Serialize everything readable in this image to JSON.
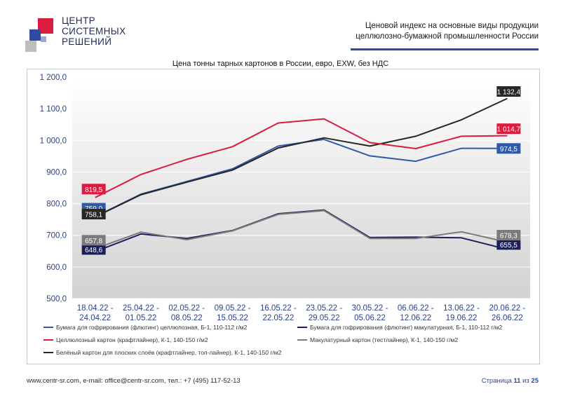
{
  "logo": {
    "line1": "ЦЕНТР",
    "line2": "СИСТЕМНЫХ",
    "line3": "РЕШЕНИЙ"
  },
  "header": {
    "line1": "Ценовой индекс на основные виды продукции",
    "line2": "целлюлозно-бумажной промышленности России",
    "accent_color": "#2e4a9a"
  },
  "chart_data": {
    "type": "line",
    "title": "Цена тонны тарных картонов в России, евро, EXW, без НДС",
    "ylim": [
      500,
      1200
    ],
    "yticks": [
      "500,0",
      "600,0",
      "700,0",
      "800,0",
      "900,0",
      "1 000,0",
      "1 100,0",
      "1 200,0"
    ],
    "ytick_values": [
      500,
      600,
      700,
      800,
      900,
      1000,
      1100,
      1200
    ],
    "categories": [
      [
        "18.04.22 -",
        "24.04.22"
      ],
      [
        "25.04.22 -",
        "01.05.22"
      ],
      [
        "02.05.22 -",
        "08.05.22"
      ],
      [
        "09.05.22 -",
        "15.05.22"
      ],
      [
        "16.05.22 -",
        "22.05.22"
      ],
      [
        "23.05.22 -",
        "29.05.22"
      ],
      [
        "30.05.22 -",
        "05.06.22"
      ],
      [
        "06.06.22 -",
        "12.06.22"
      ],
      [
        "13.06.22 -",
        "19.06.22"
      ],
      [
        "20.06.22 -",
        "26.06.22"
      ]
    ],
    "grid": "horizontal",
    "legend_position": "bottom",
    "series": [
      {
        "name": "Бумага для гофрирования (флютинг) целлюлозная, Б-1, 110-112 г/м2",
        "color": "#2f5aa8",
        "values": [
          759.0,
          830,
          870,
          910,
          982,
          1003,
          951,
          934,
          975,
          974.5
        ],
        "first_label": "759,0",
        "last_label": "974,5"
      },
      {
        "name": "Бумага для гофрирования (флютинг) макулатурная, Б-1, 110-112 г/м2",
        "color": "#1b1f5c",
        "values": [
          648.6,
          704,
          690,
          715,
          768,
          780,
          693,
          694,
          692,
          655.5
        ],
        "first_label": "648,6",
        "last_label": "655,5"
      },
      {
        "name": "Целлюлозный картон (крафтлайнер), К-1, 140-150 г/м2",
        "color": "#d91c3f",
        "values": [
          819.5,
          892,
          940,
          980,
          1055,
          1068,
          993,
          974,
          1013,
          1014.7
        ],
        "first_label": "819,5",
        "last_label": "1 014,7"
      },
      {
        "name": "Макулатурный картон (тестлайнер), К-1, 140-150 г/м2",
        "color": "#7b7b7b",
        "values": [
          657.8,
          710,
          686,
          714,
          766,
          778,
          690,
          690,
          711,
          678.3
        ],
        "first_label": "657,8",
        "last_label": "678,3"
      },
      {
        "name": "Белёный картон для плоских слоёв (крафтлайнер, топ-лайнер), К-1, 140-150 г/м2",
        "color": "#262626",
        "values": [
          758.1,
          828,
          868,
          906,
          976,
          1008,
          982,
          1013,
          1065,
          1132.4
        ],
        "first_label": "758,1",
        "last_label": "1 132,4"
      }
    ]
  },
  "footer": {
    "contacts": "www.centr-sr.com, e-mail: office@centr-sr.com, тел.: +7 (495) 117-52-13",
    "page_prefix": "Страница",
    "page_current": "11",
    "page_mid": "из",
    "page_total": "25"
  }
}
